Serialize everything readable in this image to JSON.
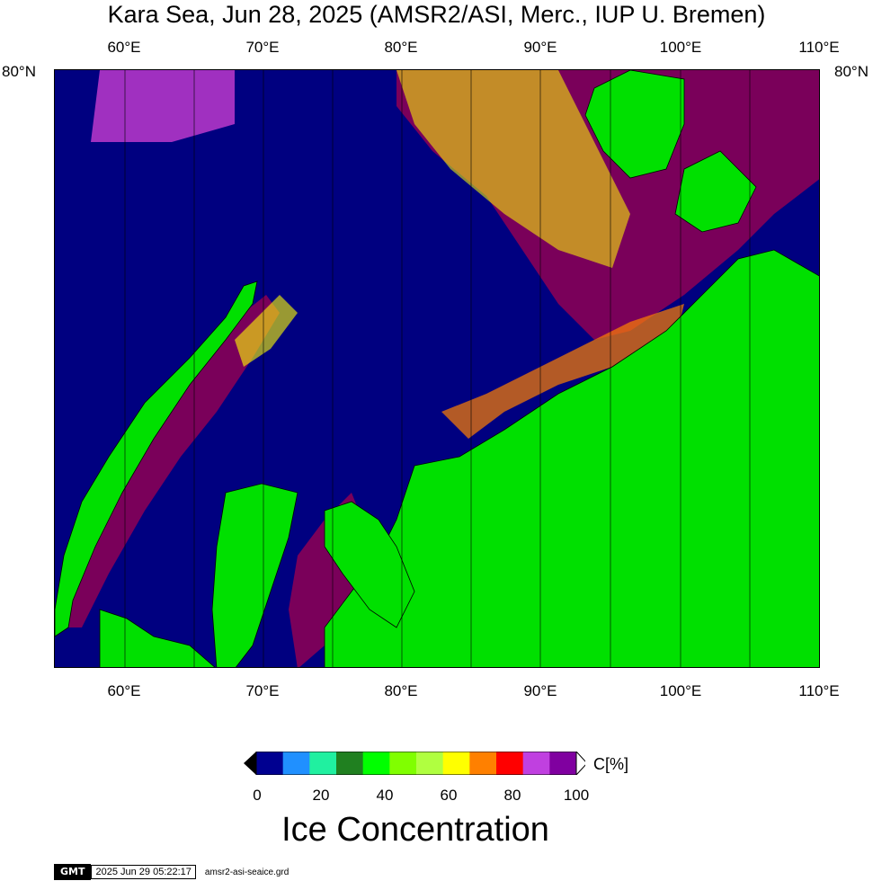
{
  "title": "Kara Sea, Jun 28, 2025 (AMSR2/ASI, Merc., IUP U. Bremen)",
  "map": {
    "projection": "Mercator",
    "lon_ticks_top": [
      "60°E",
      "70°E",
      "80°E",
      "90°E",
      "100°E",
      "110°E"
    ],
    "lon_ticks_bottom": [
      "60°E",
      "70°E",
      "80°E",
      "90°E",
      "100°E",
      "110°E"
    ],
    "lat_label_left": "80°N",
    "lat_label_right": "80°N",
    "colors": {
      "ocean_open_water": "#000080",
      "land": "#00e000",
      "ice_high": "#7a005a"
    }
  },
  "colorbar": {
    "unit": "C[%]",
    "ticks": [
      "0",
      "20",
      "40",
      "60",
      "80",
      "100"
    ],
    "colors": [
      "#000090",
      "#2090ff",
      "#20f0a0",
      "#208020",
      "#00ff00",
      "#80ff00",
      "#b0ff40",
      "#ffff00",
      "#ff8000",
      "#ff0000",
      "#c040e0",
      "#8000a0"
    ],
    "title": "Ice Concentration"
  },
  "footer": {
    "logo": "GMT",
    "timestamp": "2025 Jun 29 05:22:17",
    "filename": "amsr2-asi-seaice.grd"
  }
}
